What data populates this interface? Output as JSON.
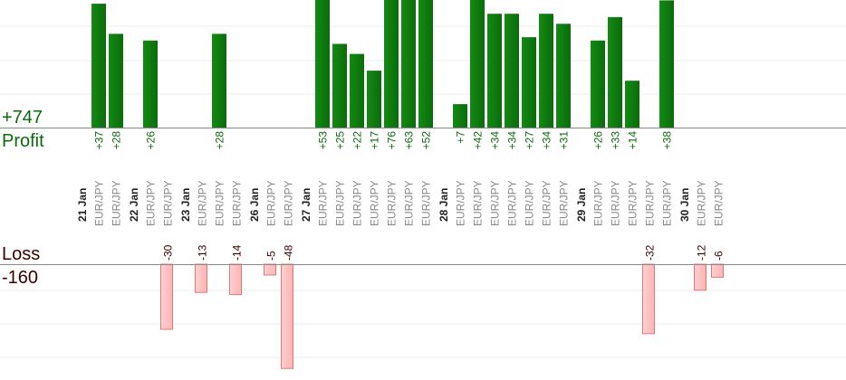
{
  "summary": {
    "profit_total": "+747",
    "profit_label": "Profit",
    "loss_label": "Loss",
    "loss_total": "-160"
  },
  "colors": {
    "profit_bar": "#0b6b0b",
    "profit_bar_light": "#138a13",
    "loss_bar": "#ffb3b3",
    "loss_bar_border": "#e07878",
    "profit_text": "#0a6b0a",
    "loss_text": "#3a0000"
  },
  "chart_data": {
    "type": "bar",
    "grid": true,
    "days": [
      {
        "date": "21 Jan",
        "trades": [
          {
            "pair": "EUR/JPY",
            "pnl": 37
          },
          {
            "pair": "EUR/JPY",
            "pnl": 28
          }
        ]
      },
      {
        "date": "22 Jan",
        "trades": [
          {
            "pair": "EUR/JPY",
            "pnl": 26
          },
          {
            "pair": "EUR/JPY",
            "pnl": -30
          }
        ]
      },
      {
        "date": "23 Jan",
        "trades": [
          {
            "pair": "EUR/JPY",
            "pnl": -13
          },
          {
            "pair": "EUR/JPY",
            "pnl": 28
          },
          {
            "pair": "EUR/JPY",
            "pnl": -14
          }
        ]
      },
      {
        "date": "26 Jan",
        "trades": [
          {
            "pair": "EUR/JPY",
            "pnl": -5
          },
          {
            "pair": "EUR/JPY",
            "pnl": -48
          }
        ]
      },
      {
        "date": "27 Jan",
        "trades": [
          {
            "pair": "EUR/JPY",
            "pnl": 53
          },
          {
            "pair": "EUR/JPY",
            "pnl": 25
          },
          {
            "pair": "EUR/JPY",
            "pnl": 22
          },
          {
            "pair": "EUR/JPY",
            "pnl": 17
          },
          {
            "pair": "EUR/JPY",
            "pnl": 76
          },
          {
            "pair": "EUR/JPY",
            "pnl": 63
          },
          {
            "pair": "EUR/JPY",
            "pnl": 52
          }
        ]
      },
      {
        "date": "28 Jan",
        "trades": [
          {
            "pair": "EUR/JPY",
            "pnl": 7
          },
          {
            "pair": "EUR/JPY",
            "pnl": 42
          },
          {
            "pair": "EUR/JPY",
            "pnl": 34
          },
          {
            "pair": "EUR/JPY",
            "pnl": 34
          },
          {
            "pair": "EUR/JPY",
            "pnl": 27
          },
          {
            "pair": "EUR/JPY",
            "pnl": 34
          },
          {
            "pair": "EUR/JPY",
            "pnl": 31
          }
        ]
      },
      {
        "date": "29 Jan",
        "trades": [
          {
            "pair": "EUR/JPY",
            "pnl": 26
          },
          {
            "pair": "EUR/JPY",
            "pnl": 33
          },
          {
            "pair": "EUR/JPY",
            "pnl": 14
          },
          {
            "pair": "EUR/JPY",
            "pnl": -32
          },
          {
            "pair": "EUR/JPY",
            "pnl": 38
          }
        ]
      },
      {
        "date": "30 Jan",
        "trades": [
          {
            "pair": "EUR/JPY",
            "pnl": -12
          },
          {
            "pair": "EUR/JPY",
            "pnl": -6
          }
        ]
      }
    ]
  }
}
